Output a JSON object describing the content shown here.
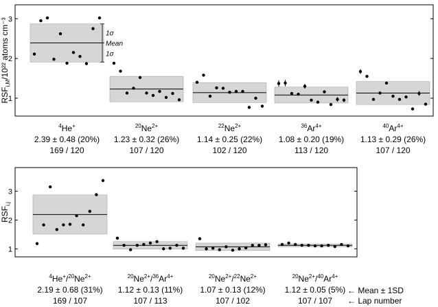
{
  "chart_data": [
    {
      "type": "scatter",
      "ylabel": "RSF",
      "ylabel_sub": "i,M",
      "ylabel_units": "/10²² atoms cm⁻³",
      "ylim": [
        0.55,
        3.35
      ],
      "yticks": [
        "1",
        "2",
        "3"
      ],
      "annotations": {
        "sigma_top": "1σ",
        "mean": "Mean",
        "sigma_bottom": "1σ"
      },
      "groups": [
        {
          "name": {
            "pre": "",
            "sup1": "4",
            "base": "He",
            "sup2": "+"
          },
          "stat": "2.39 ± 0.48 (20%)",
          "laps": "169 / 120",
          "mean": 2.39,
          "sd": 0.48,
          "points": [
            {
              "y": 2.11
            },
            {
              "y": 2.95
            },
            {
              "y": 3.02
            },
            {
              "y": 1.98
            },
            {
              "y": 2.62
            },
            {
              "y": 1.88
            },
            {
              "y": 2.15
            },
            {
              "y": 2.05
            },
            {
              "y": 1.87
            },
            {
              "y": 2.75
            },
            {
              "y": 3.02
            }
          ]
        },
        {
          "name": {
            "pre": "",
            "sup1": "20",
            "base": "Ne",
            "sup2": "2+"
          },
          "stat": "1.23 ± 0.32 (26%)",
          "laps": "107 / 120",
          "mean": 1.23,
          "sd": 0.32,
          "points": [
            {
              "y": 1.88
            },
            {
              "y": 1.68
            },
            {
              "y": 1.13
            },
            {
              "y": 1.25
            },
            {
              "y": 1.52
            },
            {
              "y": 1.13
            },
            {
              "y": 1.07
            },
            {
              "y": 1.17
            },
            {
              "y": 1.02
            },
            {
              "y": 1.12
            },
            {
              "y": 0.96
            }
          ]
        },
        {
          "name": {
            "pre": "",
            "sup1": "22",
            "base": "Ne",
            "sup2": "2+"
          },
          "stat": "1.14 ± 0.25 (22%)",
          "laps": "102 / 120",
          "mean": 1.14,
          "sd": 0.25,
          "points": [
            {
              "y": 1.4
            },
            {
              "y": 1.58
            },
            {
              "y": 1.05
            },
            {
              "y": 1.26
            },
            {
              "y": 1.25
            },
            {
              "y": 1.15
            },
            {
              "y": 1.17
            },
            {
              "y": 1.17
            },
            {
              "y": 0.77
            },
            {
              "y": 1.0
            },
            {
              "y": 0.8
            }
          ]
        },
        {
          "name": {
            "pre": "",
            "sup1": "36",
            "base": "Ar",
            "sup2": "4+"
          },
          "stat": "1.08 ± 0.20  (19%)",
          "laps": "113 / 120",
          "mean": 1.08,
          "sd": 0.2,
          "points": [
            {
              "y": 1.37,
              "err": 0.08
            },
            {
              "y": 1.38,
              "err": 0.08
            },
            {
              "y": 1.12
            },
            {
              "y": 1.1
            },
            {
              "y": 1.3,
              "err": 0.06
            },
            {
              "y": 0.95
            },
            {
              "y": 0.9
            },
            {
              "y": 1.16
            },
            {
              "y": 0.84
            },
            {
              "y": 0.97,
              "err": 0.06
            },
            {
              "y": 0.95,
              "err": 0.05
            }
          ]
        },
        {
          "name": {
            "pre": "",
            "sup1": "40",
            "base": "Ar",
            "sup2": "4+"
          },
          "stat": "1.13 ± 0.29  (26%)",
          "laps": "107 / 120",
          "mean": 1.13,
          "sd": 0.29,
          "points": [
            {
              "y": 1.67,
              "err": 0.06
            },
            {
              "y": 1.55
            },
            {
              "y": 0.97
            },
            {
              "y": 1.13
            },
            {
              "y": 1.38
            },
            {
              "y": 1.05
            },
            {
              "y": 0.97
            },
            {
              "y": 1.03
            },
            {
              "y": 0.73
            },
            {
              "y": 1.12,
              "err": 0.06
            },
            {
              "y": 0.85
            }
          ]
        }
      ]
    },
    {
      "type": "scatter",
      "ylabel": "RSF",
      "ylabel_sub": "i,j",
      "ylim": [
        0.72,
        3.82
      ],
      "yticks": [
        "1",
        "2",
        "3"
      ],
      "legend": {
        "stat_note": "← Mean ± 1SD",
        "laps_note": "← Lap number"
      },
      "groups": [
        {
          "name": {
            "pre": "4",
            "base1": "He",
            "mid": "+/",
            "sup2": "20",
            "base2": "Ne",
            "post": "2+"
          },
          "stat": "2.19 ± 0.68 (31%)",
          "laps": "169 / 107",
          "mean": 2.19,
          "sd": 0.68,
          "points": [
            {
              "y": 1.18
            },
            {
              "y": 1.83
            },
            {
              "y": 3.15
            },
            {
              "y": 1.67
            },
            {
              "y": 1.83
            },
            {
              "y": 1.85
            },
            {
              "y": 2.15
            },
            {
              "y": 1.83
            },
            {
              "y": 2.3
            },
            {
              "y": 2.88
            },
            {
              "y": 3.37
            }
          ]
        },
        {
          "name": {
            "pre": "20",
            "base1": "Ne",
            "mid": "2+/",
            "sup2": "36",
            "base2": "Ar",
            "post": "4+"
          },
          "stat": "1.12 ± 0.13 (11%)",
          "laps": "107 / 113",
          "mean": 1.12,
          "sd": 0.13,
          "points": [
            {
              "y": 1.37
            },
            {
              "y": 1.12
            },
            {
              "y": 0.97
            },
            {
              "y": 1.12
            },
            {
              "y": 1.15
            },
            {
              "y": 1.2
            },
            {
              "y": 1.25
            },
            {
              "y": 1.0
            },
            {
              "y": 1.02
            },
            {
              "y": 1.12
            },
            {
              "y": 1.02
            }
          ]
        },
        {
          "name": {
            "pre": "20",
            "base1": "Ne",
            "mid": "2+/",
            "sup2": "22",
            "base2": "Ne",
            "post": "2+"
          },
          "stat": "1.07 ± 0.13 (12%)",
          "laps": "107 / 102",
          "mean": 1.07,
          "sd": 0.13,
          "points": [
            {
              "y": 1.35
            },
            {
              "y": 1.0
            },
            {
              "y": 1.02
            },
            {
              "y": 0.97
            },
            {
              "y": 1.07
            },
            {
              "y": 0.95
            },
            {
              "y": 1.0
            },
            {
              "y": 1.03
            },
            {
              "y": 1.12
            },
            {
              "y": 1.12
            },
            {
              "y": 1.14
            }
          ]
        },
        {
          "name": {
            "pre": "20",
            "base1": "Ne",
            "mid": "2+/",
            "sup2": "40",
            "base2": "Ar",
            "post": "4+"
          },
          "stat": "1.12 ± 0.05 (5%)",
          "laps": "107 / 107",
          "mean": 1.12,
          "sd": 0.05,
          "points": [
            {
              "y": 1.15
            },
            {
              "y": 1.2
            },
            {
              "y": 1.15
            },
            {
              "y": 1.12
            },
            {
              "y": 1.12
            },
            {
              "y": 1.1
            },
            {
              "y": 1.1
            },
            {
              "y": 1.12
            },
            {
              "y": 1.08
            },
            {
              "y": 1.15
            },
            {
              "y": 1.1
            }
          ]
        }
      ]
    }
  ]
}
